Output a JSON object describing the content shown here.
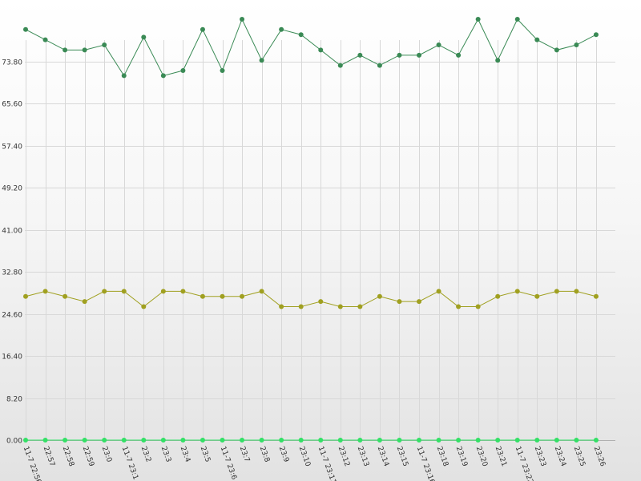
{
  "chart_data": {
    "type": "line",
    "title": "",
    "xlabel": "",
    "ylabel": "",
    "grid": true,
    "legend": "none",
    "ylim": [
      0,
      82
    ],
    "yticks": [
      "0.00",
      "8.20",
      "16.40",
      "24.60",
      "32.80",
      "41.00",
      "49.20",
      "57.40",
      "65.60",
      "73.80"
    ],
    "categories": [
      "11-7 22:56",
      "22:57",
      "22:58",
      "22:59",
      "23:0",
      "11-7 23:1",
      "23:2",
      "23:3",
      "23:4",
      "23:5",
      "11-7 23:6",
      "23:7",
      "23:8",
      "23:9",
      "23:10",
      "11-7 23:11",
      "23:12",
      "23:13",
      "23:14",
      "23:15",
      "11-7 23:16",
      "23:18",
      "23:19",
      "23:20",
      "23:21",
      "11-7 23:22",
      "23:23",
      "23:24",
      "23:25",
      "23:26"
    ],
    "series": [
      {
        "color": "#3a8a55",
        "values": [
          80.0,
          78.0,
          76.0,
          76.0,
          77.0,
          71.0,
          78.5,
          71.0,
          72.0,
          80.0,
          72.0,
          82.0,
          74.0,
          80.0,
          79.0,
          76.0,
          73.0,
          75.0,
          73.0,
          75.0,
          75.0,
          77.0,
          75.0,
          82.0,
          74.0,
          82.0,
          78.0,
          76.0,
          77.0,
          79.0
        ]
      },
      {
        "color": "#a0a020",
        "values": [
          28.0,
          29.0,
          28.0,
          27.0,
          29.0,
          29.0,
          26.0,
          29.0,
          29.0,
          28.0,
          28.0,
          28.0,
          29.0,
          26.0,
          26.0,
          27.0,
          26.0,
          26.0,
          28.0,
          27.0,
          27.0,
          29.0,
          26.0,
          26.0,
          28.0,
          29.0,
          28.0,
          29.0,
          29.0,
          28.0
        ]
      },
      {
        "color": "#33e066",
        "values": [
          0,
          0,
          0,
          0,
          0,
          0,
          0,
          0,
          0,
          0,
          0,
          0,
          0,
          0,
          0,
          0,
          0,
          0,
          0,
          0,
          0,
          0,
          0,
          0,
          0,
          0,
          0,
          0,
          0,
          0
        ]
      }
    ]
  }
}
